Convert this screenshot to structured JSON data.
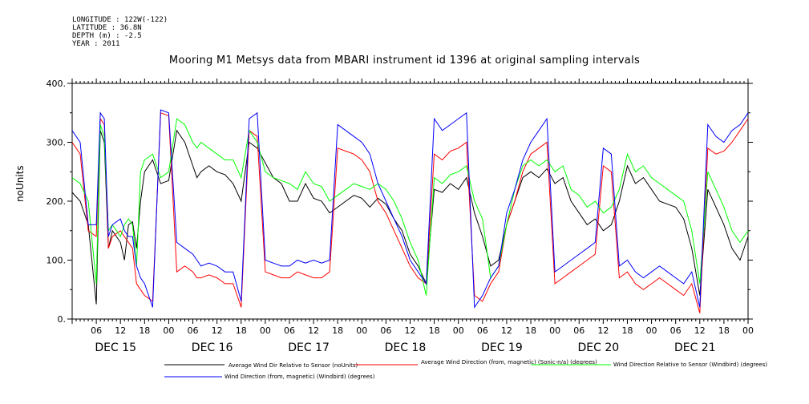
{
  "header": {
    "longitude": "LONGITUDE : 122W(-122)",
    "latitude": "LATITUDE : 36.8N",
    "depth": "DEPTH (m) : -2.5",
    "year": "YEAR : 2011"
  },
  "chart_data": {
    "type": "line",
    "title": "Mooring M1 Metsys data from MBARI instrument id 1396 at original sampling intervals",
    "ylabel": "noUnits",
    "ylim": [
      0,
      400
    ],
    "yticks": [
      0,
      100,
      200,
      300,
      400
    ],
    "ytick_labels": [
      "0.",
      "100.",
      "200.",
      "300.",
      "400."
    ],
    "xlim_hours": [
      0,
      168
    ],
    "hour_ticks": [
      "06",
      "12",
      "18",
      "00",
      "06",
      "12",
      "18",
      "00",
      "06",
      "12",
      "18",
      "00",
      "06",
      "12",
      "18",
      "00",
      "06",
      "12",
      "18",
      "00",
      "06",
      "12",
      "18",
      "00",
      "06",
      "12",
      "18",
      "00"
    ],
    "day_labels": [
      "DEC 15",
      "DEC 16",
      "DEC 17",
      "DEC 18",
      "DEC 19",
      "DEC 20",
      "DEC 21"
    ],
    "grid": false,
    "series": [
      {
        "name": "Average Wind Dir Relative to Sensor (noUnits)",
        "color": "#000000",
        "x": [
          0,
          2,
          4,
          6,
          7,
          8,
          9,
          10,
          12,
          13,
          14,
          15,
          16,
          17,
          18,
          20,
          22,
          24,
          26,
          28,
          30,
          31,
          32,
          34,
          36,
          38,
          40,
          42,
          44,
          46,
          48,
          50,
          52,
          54,
          56,
          58,
          60,
          62,
          64,
          66,
          68,
          70,
          72,
          74,
          76,
          78,
          80,
          82,
          84,
          86,
          88,
          90,
          92,
          94,
          96,
          98,
          100,
          102,
          104,
          106,
          108,
          110,
          112,
          114,
          116,
          118,
          120,
          122,
          124,
          126,
          128,
          130,
          132,
          134,
          136,
          138,
          140,
          142,
          144,
          146,
          148,
          150,
          152,
          154,
          156,
          158,
          160,
          162,
          164,
          166,
          168
        ],
        "y": [
          215,
          200,
          160,
          25,
          320,
          300,
          120,
          150,
          130,
          100,
          160,
          165,
          120,
          200,
          250,
          270,
          230,
          235,
          320,
          300,
          260,
          240,
          250,
          260,
          250,
          245,
          230,
          200,
          300,
          290,
          265,
          240,
          230,
          200,
          200,
          230,
          205,
          200,
          180,
          190,
          200,
          210,
          205,
          190,
          205,
          195,
          170,
          150,
          110,
          90,
          60,
          220,
          215,
          230,
          220,
          240,
          180,
          140,
          90,
          100,
          160,
          200,
          240,
          250,
          240,
          255,
          230,
          240,
          200,
          180,
          160,
          170,
          150,
          160,
          200,
          260,
          230,
          240,
          220,
          200,
          195,
          190,
          170,
          120,
          40,
          220,
          190,
          160,
          120,
          100,
          140
        ]
      },
      {
        "name": "Average Wind Direction (from, magnetic) (Sonic-n/a) (degrees)",
        "color": "#ff0000",
        "x": [
          0,
          2,
          4,
          6,
          7,
          8,
          9,
          10,
          12,
          13,
          14,
          15,
          16,
          17,
          18,
          20,
          22,
          24,
          26,
          28,
          30,
          31,
          32,
          34,
          36,
          38,
          40,
          42,
          44,
          46,
          48,
          50,
          52,
          54,
          56,
          58,
          60,
          62,
          64,
          66,
          68,
          70,
          72,
          74,
          76,
          78,
          80,
          82,
          84,
          86,
          88,
          90,
          92,
          94,
          96,
          98,
          100,
          102,
          104,
          106,
          108,
          110,
          112,
          114,
          116,
          118,
          120,
          122,
          124,
          126,
          128,
          130,
          132,
          134,
          136,
          138,
          140,
          142,
          144,
          146,
          148,
          150,
          152,
          154,
          156,
          158,
          160,
          162,
          164,
          166,
          168
        ],
        "y": [
          300,
          280,
          150,
          140,
          340,
          330,
          120,
          140,
          150,
          140,
          130,
          120,
          60,
          50,
          40,
          30,
          350,
          345,
          80,
          90,
          80,
          70,
          70,
          75,
          70,
          60,
          60,
          20,
          320,
          310,
          80,
          75,
          70,
          70,
          80,
          75,
          70,
          70,
          80,
          290,
          285,
          280,
          270,
          250,
          200,
          180,
          150,
          120,
          90,
          70,
          60,
          280,
          270,
          285,
          290,
          300,
          40,
          30,
          60,
          80,
          160,
          200,
          250,
          280,
          290,
          300,
          60,
          70,
          80,
          90,
          100,
          110,
          260,
          250,
          70,
          80,
          60,
          50,
          60,
          70,
          60,
          50,
          40,
          60,
          10,
          290,
          280,
          285,
          300,
          320,
          340
        ]
      },
      {
        "name": "Wind Direction Relative to Sensor (Windbird) (degrees)",
        "color": "#00ff00",
        "x": [
          0,
          2,
          4,
          6,
          7,
          8,
          9,
          10,
          12,
          13,
          14,
          15,
          16,
          17,
          18,
          20,
          22,
          24,
          26,
          28,
          30,
          31,
          32,
          34,
          36,
          38,
          40,
          42,
          44,
          46,
          48,
          50,
          52,
          54,
          56,
          58,
          60,
          62,
          64,
          66,
          68,
          70,
          72,
          74,
          76,
          78,
          80,
          82,
          84,
          86,
          88,
          90,
          92,
          94,
          96,
          98,
          100,
          102,
          104,
          106,
          108,
          110,
          112,
          114,
          116,
          118,
          120,
          122,
          124,
          126,
          128,
          130,
          132,
          134,
          136,
          138,
          140,
          142,
          144,
          146,
          148,
          150,
          152,
          154,
          156,
          158,
          160,
          162,
          164,
          166,
          168
        ],
        "y": [
          240,
          230,
          200,
          60,
          330,
          310,
          150,
          160,
          140,
          160,
          170,
          160,
          90,
          250,
          270,
          280,
          240,
          250,
          340,
          330,
          300,
          290,
          300,
          290,
          280,
          270,
          270,
          240,
          320,
          300,
          250,
          240,
          235,
          230,
          220,
          250,
          230,
          225,
          200,
          210,
          220,
          230,
          225,
          220,
          230,
          220,
          200,
          170,
          130,
          100,
          40,
          240,
          230,
          245,
          250,
          260,
          200,
          170,
          70,
          90,
          160,
          220,
          260,
          270,
          260,
          270,
          250,
          260,
          220,
          210,
          190,
          200,
          180,
          190,
          220,
          280,
          250,
          260,
          240,
          230,
          220,
          210,
          200,
          150,
          60,
          250,
          220,
          190,
          150,
          130,
          150
        ]
      },
      {
        "name": "Wind Direction (from, magnetic) (Windbird) (degrees)",
        "color": "#0000ff",
        "x": [
          0,
          2,
          4,
          6,
          7,
          8,
          9,
          10,
          12,
          13,
          14,
          15,
          16,
          17,
          18,
          20,
          22,
          24,
          26,
          28,
          30,
          31,
          32,
          34,
          36,
          38,
          40,
          42,
          44,
          46,
          48,
          50,
          52,
          54,
          56,
          58,
          60,
          62,
          64,
          66,
          68,
          70,
          72,
          74,
          76,
          78,
          80,
          82,
          84,
          86,
          88,
          90,
          92,
          94,
          96,
          98,
          100,
          102,
          104,
          106,
          108,
          110,
          112,
          114,
          116,
          118,
          120,
          122,
          124,
          126,
          128,
          130,
          132,
          134,
          136,
          138,
          140,
          142,
          144,
          146,
          148,
          150,
          152,
          154,
          156,
          158,
          160,
          162,
          164,
          166,
          168
        ],
        "y": [
          320,
          300,
          160,
          160,
          350,
          340,
          140,
          160,
          170,
          150,
          140,
          140,
          90,
          70,
          60,
          20,
          355,
          350,
          130,
          120,
          110,
          100,
          90,
          95,
          90,
          80,
          80,
          30,
          340,
          350,
          100,
          95,
          90,
          90,
          100,
          95,
          100,
          95,
          100,
          330,
          320,
          310,
          300,
          280,
          230,
          200,
          170,
          140,
          100,
          80,
          60,
          340,
          320,
          330,
          340,
          350,
          20,
          40,
          70,
          90,
          180,
          220,
          270,
          300,
          320,
          340,
          80,
          90,
          100,
          110,
          120,
          130,
          290,
          280,
          90,
          100,
          80,
          70,
          80,
          90,
          80,
          70,
          60,
          80,
          20,
          330,
          310,
          300,
          320,
          330,
          350
        ]
      }
    ]
  }
}
